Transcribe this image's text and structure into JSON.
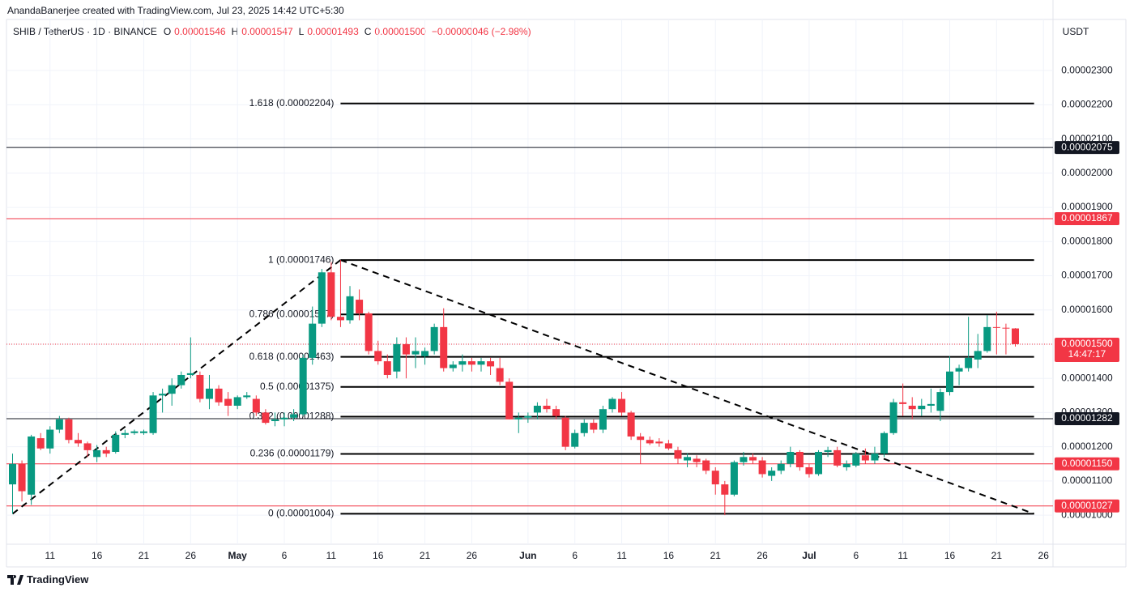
{
  "header": {
    "attribution": "AnandaBanerjee created with TradingView.com, Jul 23, 2025 14:42 UTC+5:30"
  },
  "chart_data": {
    "type": "candlestick",
    "title": "SHIB / TetherUS · 1D · BINANCE",
    "legend": [
      {
        "label": "O",
        "value": "0.00001546"
      },
      {
        "label": "H",
        "value": "0.00001547"
      },
      {
        "label": "L",
        "value": "0.00001493"
      },
      {
        "label": "C",
        "value": "0.00001500"
      }
    ],
    "change": "−0.00000046 (−2.98%)",
    "y_unit": "USDT",
    "x": [
      "04-07",
      "04-08",
      "04-09",
      "04-10",
      "04-11",
      "04-12",
      "04-13",
      "04-14",
      "04-15",
      "04-16",
      "04-17",
      "04-18",
      "04-19",
      "04-20",
      "04-21",
      "04-22",
      "04-23",
      "04-24",
      "04-25",
      "04-26",
      "04-27",
      "04-28",
      "04-29",
      "04-30",
      "05-01",
      "05-02",
      "05-03",
      "05-04",
      "05-05",
      "05-06",
      "05-07",
      "05-08",
      "05-09",
      "05-10",
      "05-11",
      "05-12",
      "05-13",
      "05-14",
      "05-15",
      "05-16",
      "05-17",
      "05-18",
      "05-19",
      "05-20",
      "05-21",
      "05-22",
      "05-23",
      "05-24",
      "05-25",
      "05-26",
      "05-27",
      "05-28",
      "05-29",
      "05-30",
      "05-31",
      "06-01",
      "06-02",
      "06-03",
      "06-04",
      "06-05",
      "06-06",
      "06-07",
      "06-08",
      "06-09",
      "06-10",
      "06-11",
      "06-12",
      "06-13",
      "06-14",
      "06-15",
      "06-16",
      "06-17",
      "06-18",
      "06-19",
      "06-20",
      "06-21",
      "06-22",
      "06-23",
      "06-24",
      "06-25",
      "06-26",
      "06-27",
      "06-28",
      "06-29",
      "06-30",
      "07-01",
      "07-02",
      "07-03",
      "07-04",
      "07-05",
      "07-06",
      "07-07",
      "07-08",
      "07-09",
      "07-10",
      "07-11",
      "07-12",
      "07-13",
      "07-14",
      "07-15",
      "07-16",
      "07-17",
      "07-18",
      "07-19",
      "07-20",
      "07-21",
      "07-22",
      "07-23"
    ],
    "open": [
      1.09e-05,
      1.15e-05,
      1.06e-05,
      1.225e-05,
      1.195e-05,
      1.25e-05,
      1.28e-05,
      1.22e-05,
      1.21e-05,
      1.17e-05,
      1.19e-05,
      1.185e-05,
      1.235e-05,
      1.24e-05,
      1.24e-05,
      1.24e-05,
      1.35e-05,
      1.355e-05,
      1.38e-05,
      1.41e-05,
      1.41e-05,
      1.34e-05,
      1.37e-05,
      1.34e-05,
      1.32e-05,
      1.345e-05,
      1.34e-05,
      1.3e-05,
      1.275e-05,
      1.28e-05,
      1.285e-05,
      1.295e-05,
      1.46e-05,
      1.56e-05,
      1.71e-05,
      1.58e-05,
      1.57e-05,
      1.63e-05,
      1.59e-05,
      1.48e-05,
      1.45e-05,
      1.42e-05,
      1.5e-05,
      1.47e-05,
      1.465e-05,
      1.48e-05,
      1.55e-05,
      1.43e-05,
      1.44e-05,
      1.45e-05,
      1.44e-05,
      1.45e-05,
      1.43e-05,
      1.39e-05,
      1.28e-05,
      1.285e-05,
      1.3e-05,
      1.32e-05,
      1.31e-05,
      1.285e-05,
      1.2e-05,
      1.24e-05,
      1.27e-05,
      1.25e-05,
      1.31e-05,
      1.34e-05,
      1.3e-05,
      1.23e-05,
      1.22e-05,
      1.215e-05,
      1.21e-05,
      1.19e-05,
      1.16e-05,
      1.165e-05,
      1.16e-05,
      1.13e-05,
      1.09e-05,
      1.06e-05,
      1.155e-05,
      1.17e-05,
      1.16e-05,
      1.115e-05,
      1.13e-05,
      1.15e-05,
      1.185e-05,
      1.14e-05,
      1.12e-05,
      1.185e-05,
      1.19e-05,
      1.14e-05,
      1.145e-05,
      1.175e-05,
      1.16e-05,
      1.18e-05,
      1.24e-05,
      1.33e-05,
      1.32e-05,
      1.31e-05,
      1.32e-05,
      1.305e-05,
      1.36e-05,
      1.42e-05,
      1.43e-05,
      1.455e-05,
      1.48e-05,
      1.55e-05,
      1.548e-05,
      1.546e-05
    ],
    "high": [
      1.18e-05,
      1.16e-05,
      1.235e-05,
      1.24e-05,
      1.26e-05,
      1.29e-05,
      1.285e-05,
      1.24e-05,
      1.215e-05,
      1.205e-05,
      1.2e-05,
      1.245e-05,
      1.25e-05,
      1.25e-05,
      1.25e-05,
      1.36e-05,
      1.37e-05,
      1.4e-05,
      1.42e-05,
      1.52e-05,
      1.42e-05,
      1.41e-05,
      1.38e-05,
      1.36e-05,
      1.35e-05,
      1.36e-05,
      1.35e-05,
      1.31e-05,
      1.3e-05,
      1.3e-05,
      1.31e-05,
      1.47e-05,
      1.61e-05,
      1.72e-05,
      1.74e-05,
      1.746e-05,
      1.67e-05,
      1.66e-05,
      1.595e-05,
      1.51e-05,
      1.47e-05,
      1.52e-05,
      1.52e-05,
      1.52e-05,
      1.49e-05,
      1.56e-05,
      1.605e-05,
      1.45e-05,
      1.47e-05,
      1.46e-05,
      1.46e-05,
      1.46e-05,
      1.46e-05,
      1.4e-05,
      1.3e-05,
      1.3e-05,
      1.33e-05,
      1.34e-05,
      1.32e-05,
      1.29e-05,
      1.25e-05,
      1.28e-05,
      1.28e-05,
      1.32e-05,
      1.345e-05,
      1.36e-05,
      1.305e-05,
      1.24e-05,
      1.23e-05,
      1.225e-05,
      1.22e-05,
      1.2e-05,
      1.18e-05,
      1.175e-05,
      1.165e-05,
      1.14e-05,
      1.1e-05,
      1.16e-05,
      1.185e-05,
      1.18e-05,
      1.17e-05,
      1.14e-05,
      1.16e-05,
      1.2e-05,
      1.19e-05,
      1.15e-05,
      1.19e-05,
      1.2e-05,
      1.2e-05,
      1.16e-05,
      1.185e-05,
      1.195e-05,
      1.2e-05,
      1.245e-05,
      1.34e-05,
      1.385e-05,
      1.345e-05,
      1.34e-05,
      1.37e-05,
      1.37e-05,
      1.465e-05,
      1.44e-05,
      1.58e-05,
      1.53e-05,
      1.585e-05,
      1.595e-05,
      1.56e-05,
      1.547e-05
    ],
    "low": [
      1.004e-05,
      1.04e-05,
      1.03e-05,
      1.19e-05,
      1.18e-05,
      1.24e-05,
      1.21e-05,
      1.2e-05,
      1.17e-05,
      1.155e-05,
      1.17e-05,
      1.18e-05,
      1.225e-05,
      1.235e-05,
      1.235e-05,
      1.235e-05,
      1.3e-05,
      1.32e-05,
      1.37e-05,
      1.4e-05,
      1.33e-05,
      1.31e-05,
      1.32e-05,
      1.29e-05,
      1.31e-05,
      1.34e-05,
      1.29e-05,
      1.265e-05,
      1.26e-05,
      1.26e-05,
      1.275e-05,
      1.29e-05,
      1.44e-05,
      1.55e-05,
      1.57e-05,
      1.55e-05,
      1.56e-05,
      1.57e-05,
      1.47e-05,
      1.44e-05,
      1.4e-05,
      1.4e-05,
      1.4e-05,
      1.43e-05,
      1.44e-05,
      1.47e-05,
      1.42e-05,
      1.42e-05,
      1.42e-05,
      1.42e-05,
      1.42e-05,
      1.41e-05,
      1.38e-05,
      1.28e-05,
      1.24e-05,
      1.27e-05,
      1.28e-05,
      1.3e-05,
      1.28e-05,
      1.19e-05,
      1.195e-05,
      1.23e-05,
      1.24e-05,
      1.24e-05,
      1.3e-05,
      1.29e-05,
      1.22e-05,
      1.15e-05,
      1.205e-05,
      1.2e-05,
      1.19e-05,
      1.15e-05,
      1.14e-05,
      1.14e-05,
      1.12e-05,
      1.06e-05,
      1e-05,
      1.055e-05,
      1.145e-05,
      1.15e-05,
      1.11e-05,
      1.1e-05,
      1.12e-05,
      1.14e-05,
      1.13e-05,
      1.11e-05,
      1.115e-05,
      1.17e-05,
      1.14e-05,
      1.13e-05,
      1.14e-05,
      1.15e-05,
      1.15e-05,
      1.17e-05,
      1.235e-05,
      1.29e-05,
      1.28e-05,
      1.29e-05,
      1.3e-05,
      1.275e-05,
      1.35e-05,
      1.38e-05,
      1.42e-05,
      1.43e-05,
      1.475e-05,
      1.47e-05,
      1.47e-05,
      1.493e-05
    ],
    "close": [
      1.15e-05,
      1.07e-05,
      1.23e-05,
      1.195e-05,
      1.25e-05,
      1.28e-05,
      1.22e-05,
      1.21e-05,
      1.19e-05,
      1.19e-05,
      1.18e-05,
      1.235e-05,
      1.24e-05,
      1.245e-05,
      1.245e-05,
      1.35e-05,
      1.355e-05,
      1.38e-05,
      1.41e-05,
      1.415e-05,
      1.34e-05,
      1.37e-05,
      1.33e-05,
      1.32e-05,
      1.345e-05,
      1.35e-05,
      1.3e-05,
      1.27e-05,
      1.28e-05,
      1.285e-05,
      1.295e-05,
      1.46e-05,
      1.56e-05,
      1.71e-05,
      1.58e-05,
      1.57e-05,
      1.64e-05,
      1.59e-05,
      1.48e-05,
      1.45e-05,
      1.41e-05,
      1.5e-05,
      1.47e-05,
      1.48e-05,
      1.48e-05,
      1.55e-05,
      1.43e-05,
      1.44e-05,
      1.45e-05,
      1.44e-05,
      1.45e-05,
      1.435e-05,
      1.39e-05,
      1.28e-05,
      1.285e-05,
      1.29e-05,
      1.32e-05,
      1.31e-05,
      1.29e-05,
      1.2e-05,
      1.24e-05,
      1.27e-05,
      1.25e-05,
      1.31e-05,
      1.34e-05,
      1.3e-05,
      1.23e-05,
      1.22e-05,
      1.21e-05,
      1.21e-05,
      1.195e-05,
      1.165e-05,
      1.17e-05,
      1.155e-05,
      1.13e-05,
      1.09e-05,
      1.06e-05,
      1.155e-05,
      1.17e-05,
      1.16e-05,
      1.12e-05,
      1.13e-05,
      1.15e-05,
      1.185e-05,
      1.14e-05,
      1.12e-05,
      1.185e-05,
      1.19e-05,
      1.145e-05,
      1.15e-05,
      1.18e-05,
      1.16e-05,
      1.18e-05,
      1.24e-05,
      1.33e-05,
      1.325e-05,
      1.31e-05,
      1.32e-05,
      1.325e-05,
      1.36e-05,
      1.42e-05,
      1.43e-05,
      1.46e-05,
      1.48e-05,
      1.55e-05,
      1.548e-05,
      1.546e-05,
      1.5e-05
    ],
    "up_color": "#089981",
    "down_color": "#f23645",
    "ylim": [
      9.15e-06,
      2.388e-05
    ],
    "yticks": [
      {
        "value": 1e-05,
        "label": "0.00001000"
      },
      {
        "value": 1.1e-05,
        "label": "0.00001100"
      },
      {
        "value": 1.2e-05,
        "label": "0.00001200"
      },
      {
        "value": 1.3e-05,
        "label": "0.00001300"
      },
      {
        "value": 1.4e-05,
        "label": "0.00001400"
      },
      {
        "value": 1.5e-05,
        "label": "0.00001500"
      },
      {
        "value": 1.6e-05,
        "label": "0.00001600"
      },
      {
        "value": 1.7e-05,
        "label": "0.00001700"
      },
      {
        "value": 1.8e-05,
        "label": "0.00001800"
      },
      {
        "value": 1.9e-05,
        "label": "0.00001900"
      },
      {
        "value": 2e-05,
        "label": "0.00002000"
      },
      {
        "value": 2.1e-05,
        "label": "0.00002100"
      },
      {
        "value": 2.2e-05,
        "label": "0.00002200"
      },
      {
        "value": 2.3e-05,
        "label": "0.00002300"
      }
    ],
    "xticks": [
      {
        "value": "04-11",
        "label": "11"
      },
      {
        "value": "04-16",
        "label": "16"
      },
      {
        "value": "04-21",
        "label": "21"
      },
      {
        "value": "04-26",
        "label": "26"
      },
      {
        "value": "05-01",
        "label": "May"
      },
      {
        "value": "05-06",
        "label": "6"
      },
      {
        "value": "05-11",
        "label": "11"
      },
      {
        "value": "05-16",
        "label": "16"
      },
      {
        "value": "05-21",
        "label": "21"
      },
      {
        "value": "05-26",
        "label": "26"
      },
      {
        "value": "06-01",
        "label": "Jun"
      },
      {
        "value": "06-06",
        "label": "6"
      },
      {
        "value": "06-11",
        "label": "11"
      },
      {
        "value": "06-16",
        "label": "16"
      },
      {
        "value": "06-21",
        "label": "21"
      },
      {
        "value": "06-26",
        "label": "26"
      },
      {
        "value": "07-01",
        "label": "Jul"
      },
      {
        "value": "07-06",
        "label": "6"
      },
      {
        "value": "07-11",
        "label": "11"
      },
      {
        "value": "07-16",
        "label": "16"
      },
      {
        "value": "07-21",
        "label": "21"
      },
      {
        "value": "07-26",
        "label": "26"
      }
    ],
    "grid": true,
    "fib": {
      "from": "05-12",
      "to": "07-25",
      "levels": [
        {
          "value": 2.204e-05,
          "label": "1.618 (0.00002204)"
        },
        {
          "value": 1.746e-05,
          "label": "1 (0.00001746)"
        },
        {
          "value": 1.587e-05,
          "label": "0.786 (0.00001587)"
        },
        {
          "value": 1.463e-05,
          "label": "0.618 (0.00001463)"
        },
        {
          "value": 1.375e-05,
          "label": "0.5 (0.00001375)"
        },
        {
          "value": 1.288e-05,
          "label": "0.382 (0.00001288)"
        },
        {
          "value": 1.179e-05,
          "label": "0.236 (0.00001179)"
        },
        {
          "value": 1.004e-05,
          "label": "0 (0.00001004)"
        }
      ]
    },
    "hlines": [
      {
        "value": 2.075e-05,
        "label": "0.00002075",
        "color": "#131722"
      },
      {
        "value": 1.867e-05,
        "label": "0.00001867",
        "color": "#f23645"
      },
      {
        "value": 1.282e-05,
        "label": "0.00001282",
        "color": "#131722"
      },
      {
        "value": 1.15e-05,
        "label": "0.00001150",
        "color": "#f23645"
      },
      {
        "value": 1.027e-05,
        "label": "0.00001027",
        "color": "#f23645"
      }
    ],
    "last_price": {
      "value": 1.5e-05,
      "label": "0.00001500",
      "countdown": "14:47:17",
      "color": "#f23645"
    },
    "trendlines": [
      {
        "x": [
          "04-07",
          "05-12"
        ],
        "y": [
          1.004e-05,
          1.746e-05
        ]
      },
      {
        "x": [
          "05-12",
          "07-25"
        ],
        "y": [
          1.746e-05,
          1.004e-05
        ]
      }
    ]
  },
  "footer": {
    "brand": "TradingView"
  }
}
